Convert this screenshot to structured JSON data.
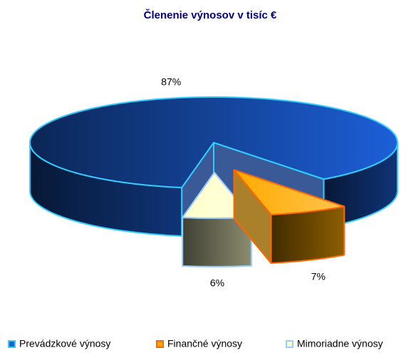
{
  "chart_data": {
    "type": "pie",
    "title": "Členenie výnosov  v tisíc €",
    "categories": [
      "Prevádzkové výnosy",
      "Finančné výnosy",
      "Mimoriadne výnosy"
    ],
    "values": [
      87,
      7,
      6
    ],
    "value_labels": [
      "87%",
      "7%",
      "6%"
    ],
    "colors": [
      "#1c5fd8",
      "#ffaa00",
      "#ffffcc"
    ],
    "legend": "bottom"
  }
}
